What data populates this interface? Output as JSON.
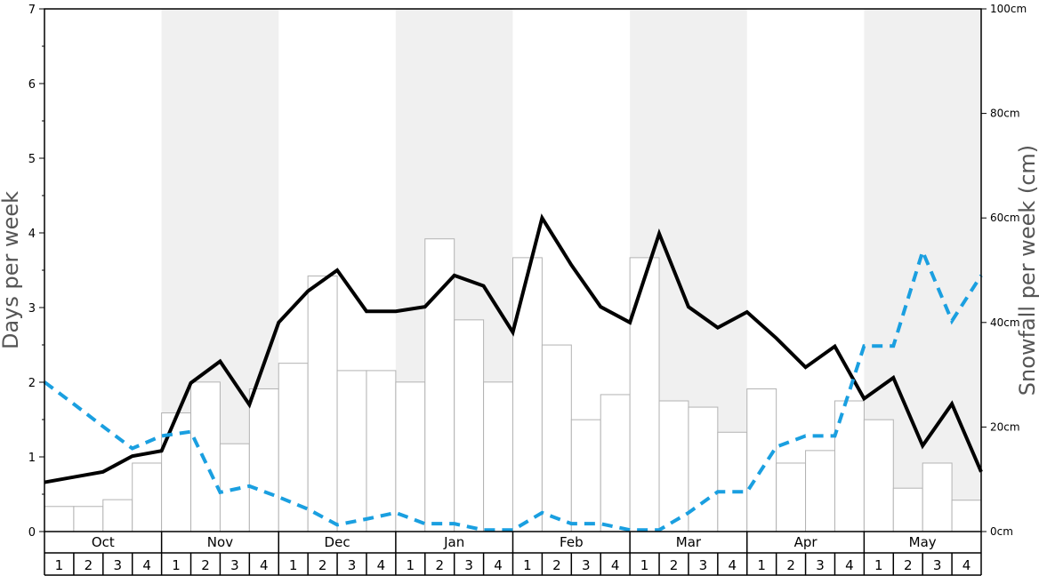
{
  "chart_data": {
    "type": "bar",
    "left_axis": {
      "label": "Days per week",
      "ylim": [
        0,
        7
      ],
      "ticks": [
        "0",
        "1",
        "2",
        "3",
        "4",
        "5",
        "6",
        "7"
      ]
    },
    "right_axis": {
      "label": "Snowfall per week (cm)",
      "ylim": [
        0,
        100
      ],
      "ticks": [
        "0cm",
        "20cm",
        "40cm",
        "60cm",
        "80cm",
        "100cm"
      ]
    },
    "months": [
      "Oct",
      "Nov",
      "Dec",
      "Jan",
      "Feb",
      "Mar",
      "Apr",
      "May"
    ],
    "weeks": [
      "1",
      "2",
      "3",
      "4"
    ],
    "shaded_months": [
      "Nov",
      "Jan",
      "Mar",
      "May"
    ],
    "colors": {
      "shade": "#f0f0f0",
      "bar_fill": "#ffffff",
      "bar_stroke": "#b3b3b3",
      "black_line": "#000000",
      "blue_line": "#1a9fe0"
    },
    "series": [
      {
        "kind": "bar",
        "axis": "right",
        "unit": "cm",
        "values": [
          4.8,
          4.8,
          6.1,
          13.1,
          22.7,
          28.6,
          16.8,
          27.3,
          32.2,
          48.9,
          30.8,
          30.8,
          28.6,
          56.0,
          40.5,
          28.6,
          52.4,
          35.7,
          21.4,
          26.2,
          52.4,
          25.0,
          23.8,
          19.0,
          27.3,
          13.1,
          15.5,
          25.0,
          21.4,
          8.3,
          13.1,
          6.0
        ]
      },
      {
        "kind": "line",
        "axis": "left",
        "style": "solid",
        "values": [
          0.66,
          0.73,
          0.8,
          1.01,
          1.08,
          1.99,
          2.28,
          1.7,
          2.8,
          3.22,
          3.5,
          2.95,
          2.95,
          3.01,
          3.43,
          3.29,
          2.67,
          4.2,
          3.57,
          3.01,
          2.8,
          3.99,
          3.01,
          2.73,
          2.94,
          2.59,
          2.2,
          2.48,
          1.78,
          2.06,
          1.15,
          1.71,
          0.8
        ]
      },
      {
        "kind": "line",
        "axis": "right",
        "style": "dashed",
        "unit": "cm",
        "values": [
          28.6,
          24.4,
          20.1,
          15.9,
          18.3,
          19.1,
          7.5,
          8.7,
          6.6,
          4.3,
          1.3,
          2.4,
          3.6,
          1.5,
          1.5,
          0.3,
          0.3,
          3.6,
          1.5,
          1.5,
          0.3,
          0.3,
          3.6,
          7.6,
          7.6,
          16.2,
          18.3,
          18.3,
          35.5,
          35.5,
          53.6,
          40.3,
          49.0
        ]
      }
    ]
  }
}
